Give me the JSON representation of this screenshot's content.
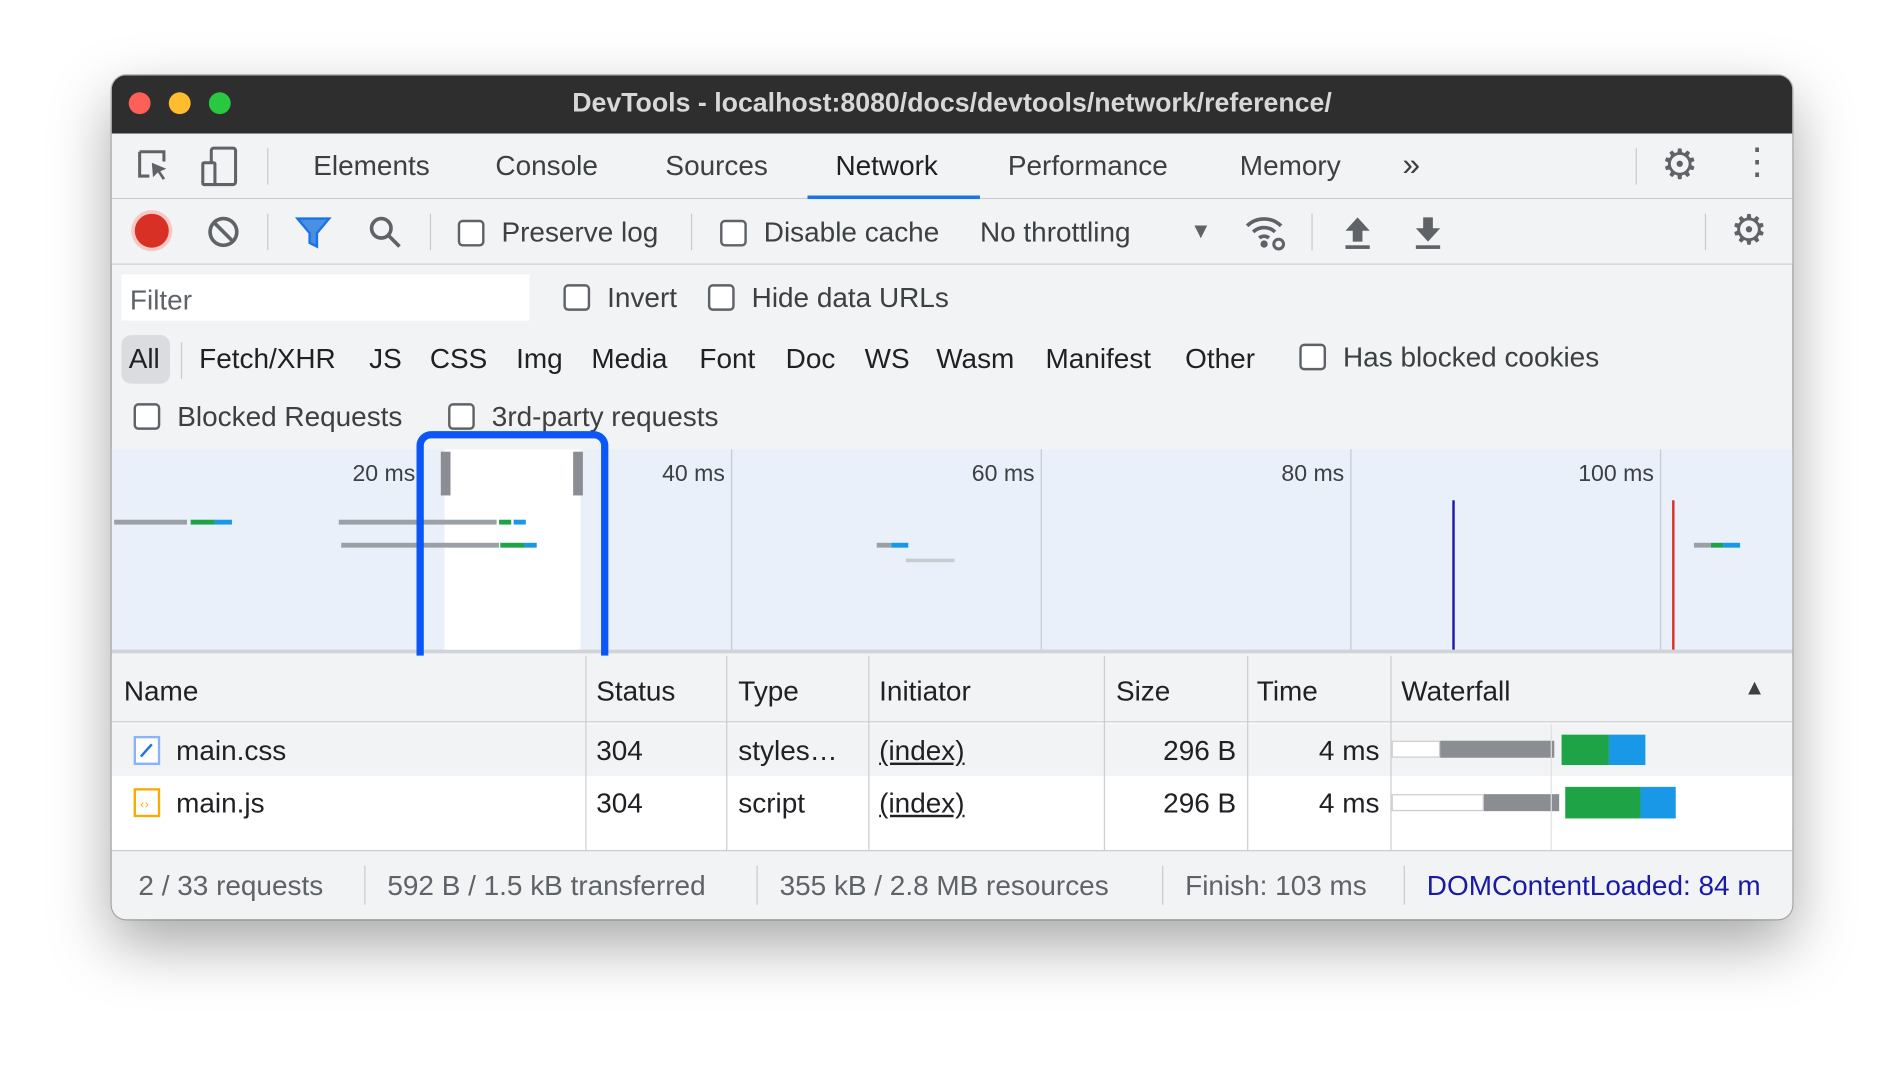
{
  "window": {
    "title": "DevTools - localhost:8080/docs/devtools/network/reference/"
  },
  "tabs": [
    {
      "label": "Elements"
    },
    {
      "label": "Console"
    },
    {
      "label": "Sources"
    },
    {
      "label": "Network",
      "active": true
    },
    {
      "label": "Performance"
    },
    {
      "label": "Memory"
    }
  ],
  "more_tabs": "»",
  "toolbar": {
    "preserve_log": "Preserve log",
    "disable_cache": "Disable cache",
    "throttling": "No throttling"
  },
  "filter": {
    "placeholder": "Filter",
    "invert": "Invert",
    "hide_data_urls": "Hide data URLs"
  },
  "types": [
    "All",
    "Fetch/XHR",
    "JS",
    "CSS",
    "Img",
    "Media",
    "Font",
    "Doc",
    "WS",
    "Wasm",
    "Manifest",
    "Other"
  ],
  "has_blocked_cookies": "Has blocked cookies",
  "blocked_requests": "Blocked Requests",
  "third_party": "3rd-party requests",
  "overview": {
    "ticks": [
      "20 ms",
      "40 ms",
      "60 ms",
      "80 ms",
      "100 ms"
    ],
    "dom_content_loaded_color": "#1a1aa6",
    "load_color": "#d93025"
  },
  "table": {
    "headers": [
      "Name",
      "Status",
      "Type",
      "Initiator",
      "Size",
      "Time",
      "Waterfall"
    ],
    "rows": [
      {
        "name": "main.css",
        "icon": "stylesheet-icon",
        "status": "304",
        "type": "styles…",
        "initiator": "(index)",
        "size": "296 B",
        "time": "4 ms"
      },
      {
        "name": "main.js",
        "icon": "script-icon",
        "status": "304",
        "type": "script",
        "initiator": "(index)",
        "size": "296 B",
        "time": "4 ms"
      }
    ]
  },
  "statusbar": {
    "requests": "2 / 33 requests",
    "transferred": "592 B / 1.5 kB transferred",
    "resources": "355 kB / 2.8 MB resources",
    "finish": "Finish: 103 ms",
    "dcl": "DOMContentLoaded: 84 m"
  },
  "colors": {
    "accent": "#1a73e8",
    "highlight": "#0b57f5",
    "waiting": "#9aa0a6",
    "download": "#1ea446",
    "content": "#1a98e8"
  }
}
